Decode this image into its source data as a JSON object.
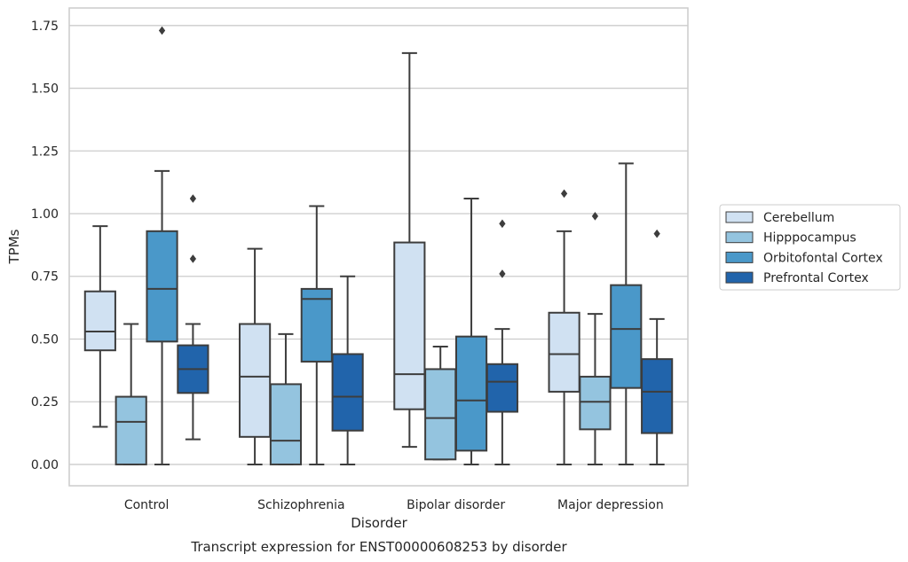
{
  "chart_data": {
    "type": "boxplot",
    "title": "Transcript expression for ENST00000608253 by disorder",
    "xlabel": "Disorder",
    "ylabel": "TPMs",
    "ylim": [
      -0.085,
      1.82
    ],
    "yticks": [
      0.0,
      0.25,
      0.5,
      0.75,
      1.0,
      1.25,
      1.5,
      1.75
    ],
    "ytick_labels": [
      "0.00",
      "0.25",
      "0.50",
      "0.75",
      "1.00",
      "1.25",
      "1.50",
      "1.75"
    ],
    "grid": "horizontal",
    "legend_placement": "center-right outside",
    "categories": [
      "Control",
      "Schizophrenia",
      "Bipolar disorder",
      "Major depression"
    ],
    "series": [
      {
        "name": "Cerebellum",
        "color": "#d0e1f2",
        "boxes": [
          {
            "whislo": 0.15,
            "q1": 0.455,
            "med": 0.53,
            "q3": 0.69,
            "whishi": 0.95,
            "fliers": []
          },
          {
            "whislo": 0.0,
            "q1": 0.11,
            "med": 0.35,
            "q3": 0.56,
            "whishi": 0.86,
            "fliers": []
          },
          {
            "whislo": 0.07,
            "q1": 0.22,
            "med": 0.36,
            "q3": 0.885,
            "whishi": 1.64,
            "fliers": []
          },
          {
            "whislo": 0.0,
            "q1": 0.29,
            "med": 0.44,
            "q3": 0.605,
            "whishi": 0.93,
            "fliers": [
              1.08
            ]
          }
        ]
      },
      {
        "name": "Hipppocampus",
        "color": "#94c4df",
        "boxes": [
          {
            "whislo": 0.0,
            "q1": 0.0,
            "med": 0.17,
            "q3": 0.27,
            "whishi": 0.56,
            "fliers": []
          },
          {
            "whislo": 0.0,
            "q1": 0.0,
            "med": 0.095,
            "q3": 0.32,
            "whishi": 0.52,
            "fliers": []
          },
          {
            "whislo": 0.02,
            "q1": 0.02,
            "med": 0.185,
            "q3": 0.38,
            "whishi": 0.47,
            "fliers": []
          },
          {
            "whislo": 0.0,
            "q1": 0.14,
            "med": 0.25,
            "q3": 0.35,
            "whishi": 0.6,
            "fliers": [
              0.99
            ]
          }
        ]
      },
      {
        "name": "Orbitofontal Cortex",
        "color": "#4a98c9",
        "boxes": [
          {
            "whislo": 0.0,
            "q1": 0.49,
            "med": 0.7,
            "q3": 0.93,
            "whishi": 1.17,
            "fliers": [
              1.73
            ]
          },
          {
            "whislo": 0.0,
            "q1": 0.41,
            "med": 0.66,
            "q3": 0.7,
            "whishi": 1.03,
            "fliers": []
          },
          {
            "whislo": 0.0,
            "q1": 0.055,
            "med": 0.255,
            "q3": 0.51,
            "whishi": 1.06,
            "fliers": []
          },
          {
            "whislo": 0.0,
            "q1": 0.305,
            "med": 0.54,
            "q3": 0.715,
            "whishi": 1.2,
            "fliers": []
          }
        ]
      },
      {
        "name": "Prefrontal Cortex",
        "color": "#2164ab",
        "boxes": [
          {
            "whislo": 0.1,
            "q1": 0.285,
            "med": 0.38,
            "q3": 0.475,
            "whishi": 0.56,
            "fliers": [
              0.82,
              1.06
            ]
          },
          {
            "whislo": 0.0,
            "q1": 0.135,
            "med": 0.27,
            "q3": 0.44,
            "whishi": 0.75,
            "fliers": []
          },
          {
            "whislo": 0.0,
            "q1": 0.21,
            "med": 0.33,
            "q3": 0.4,
            "whishi": 0.54,
            "fliers": [
              0.76,
              0.96
            ]
          },
          {
            "whislo": 0.0,
            "q1": 0.125,
            "med": 0.29,
            "q3": 0.42,
            "whishi": 0.58,
            "fliers": [
              0.92
            ]
          }
        ]
      }
    ],
    "colors": {
      "grid": "#cccccc",
      "spine": "#cccccc",
      "box_edge": "#3d3d3d",
      "text": "#262626",
      "legend_border": "#cccccc"
    }
  }
}
